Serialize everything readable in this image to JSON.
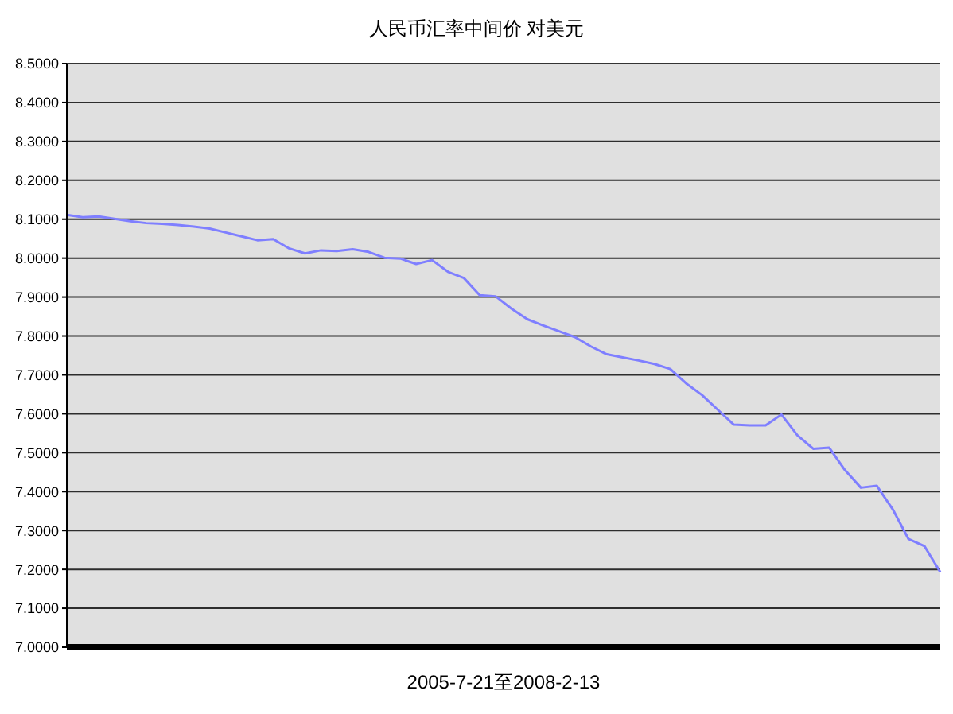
{
  "chart_data": {
    "type": "line",
    "title": "人民币汇率中间价 对美元",
    "xlabel": "2005-7-21至2008-2-13",
    "categories": [
      null,
      null,
      null,
      null,
      null,
      null,
      null,
      null,
      null,
      null,
      null,
      null,
      null,
      null,
      null,
      null,
      null,
      null,
      null,
      null,
      null,
      null,
      null,
      null,
      null,
      null,
      null,
      null,
      null,
      null,
      null,
      null,
      null,
      null,
      null,
      null,
      null,
      null,
      null,
      null,
      null,
      null,
      null,
      null,
      null,
      null,
      null,
      null,
      null,
      null,
      null,
      null,
      null,
      null,
      null,
      null
    ],
    "series": [
      {
        "color": "#7f7fff",
        "values": [
          8.111,
          8.105,
          8.107,
          8.101,
          8.095,
          8.09,
          8.088,
          8.085,
          8.081,
          8.076,
          8.066,
          8.056,
          8.046,
          8.049,
          8.025,
          8.012,
          8.02,
          8.018,
          8.023,
          8.016,
          8.001,
          7.999,
          7.985,
          7.995,
          7.965,
          7.949,
          7.905,
          7.902,
          7.87,
          7.843,
          7.827,
          7.812,
          7.797,
          7.773,
          7.753,
          7.745,
          7.737,
          7.728,
          7.715,
          7.678,
          7.648,
          7.61,
          7.572,
          7.57,
          7.57,
          7.598,
          7.545,
          7.51,
          7.513,
          7.455,
          7.41,
          7.415,
          7.355,
          7.278,
          7.26,
          7.193
        ]
      }
    ],
    "ylim": [
      7.0,
      8.5
    ],
    "yticks": [
      {
        "value": 7.0,
        "label": "7.0000"
      },
      {
        "value": 7.1,
        "label": "7.1000"
      },
      {
        "value": 7.2,
        "label": "7.2000"
      },
      {
        "value": 7.3,
        "label": "7.3000"
      },
      {
        "value": 7.4,
        "label": "7.4000"
      },
      {
        "value": 7.5,
        "label": "7.5000"
      },
      {
        "value": 7.6,
        "label": "7.6000"
      },
      {
        "value": 7.7,
        "label": "7.7000"
      },
      {
        "value": 7.8,
        "label": "7.8000"
      },
      {
        "value": 7.9,
        "label": "7.9000"
      },
      {
        "value": 8.0,
        "label": "8.0000"
      },
      {
        "value": 8.1,
        "label": "8.1000"
      },
      {
        "value": 8.2,
        "label": "8.2000"
      },
      {
        "value": 8.3,
        "label": "8.3000"
      },
      {
        "value": 8.4,
        "label": "8.4000"
      },
      {
        "value": 8.5,
        "label": "8.5000"
      }
    ],
    "grid": "y",
    "tick_labels": "y",
    "line_style": "solid"
  }
}
